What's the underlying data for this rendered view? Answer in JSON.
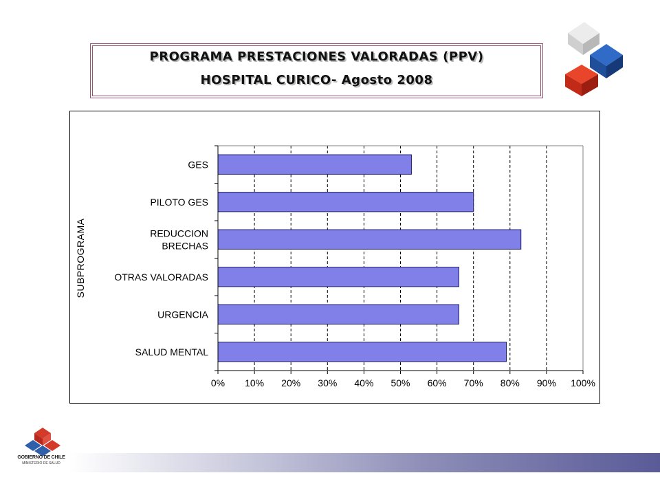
{
  "header": {
    "title_line1": "PROGRAMA PRESTACIONES VALORADAS (PPV)",
    "title_line2": "HOSPITAL CURICO- Agosto 2008"
  },
  "footer": {
    "org_name": "GOBIERNO DE CHILE",
    "ministry": "MINISTERIO DE SALUD"
  },
  "colors": {
    "bar_fill": "#8080e8",
    "bar_stroke": "#1a1a6a",
    "title_border": "#9c4f75",
    "cube_light": "#dcdcdc",
    "cube_blue": "#1f4e9a",
    "cube_red": "#d0301a"
  },
  "icons": {
    "corner_logo": "stacked-cubes-icon",
    "gov_logo": "government-shield-icon"
  },
  "chart_data": {
    "type": "bar",
    "orientation": "horizontal",
    "categories": [
      [
        "GES"
      ],
      [
        "PILOTO GES"
      ],
      [
        "REDUCCION",
        "BRECHAS"
      ],
      [
        "OTRAS VALORADAS"
      ],
      [
        "URGENCIA"
      ],
      [
        "SALUD MENTAL"
      ]
    ],
    "values": [
      53,
      70,
      83,
      66,
      66,
      79
    ],
    "ylabel": "SUBPROGRAMA",
    "xlabel": "",
    "xlim": [
      0,
      100
    ],
    "x_ticks": [
      0,
      10,
      20,
      30,
      40,
      50,
      60,
      70,
      80,
      90,
      100
    ],
    "x_tick_format": "percent",
    "grid": "vertical-dashed",
    "legend": "none"
  }
}
